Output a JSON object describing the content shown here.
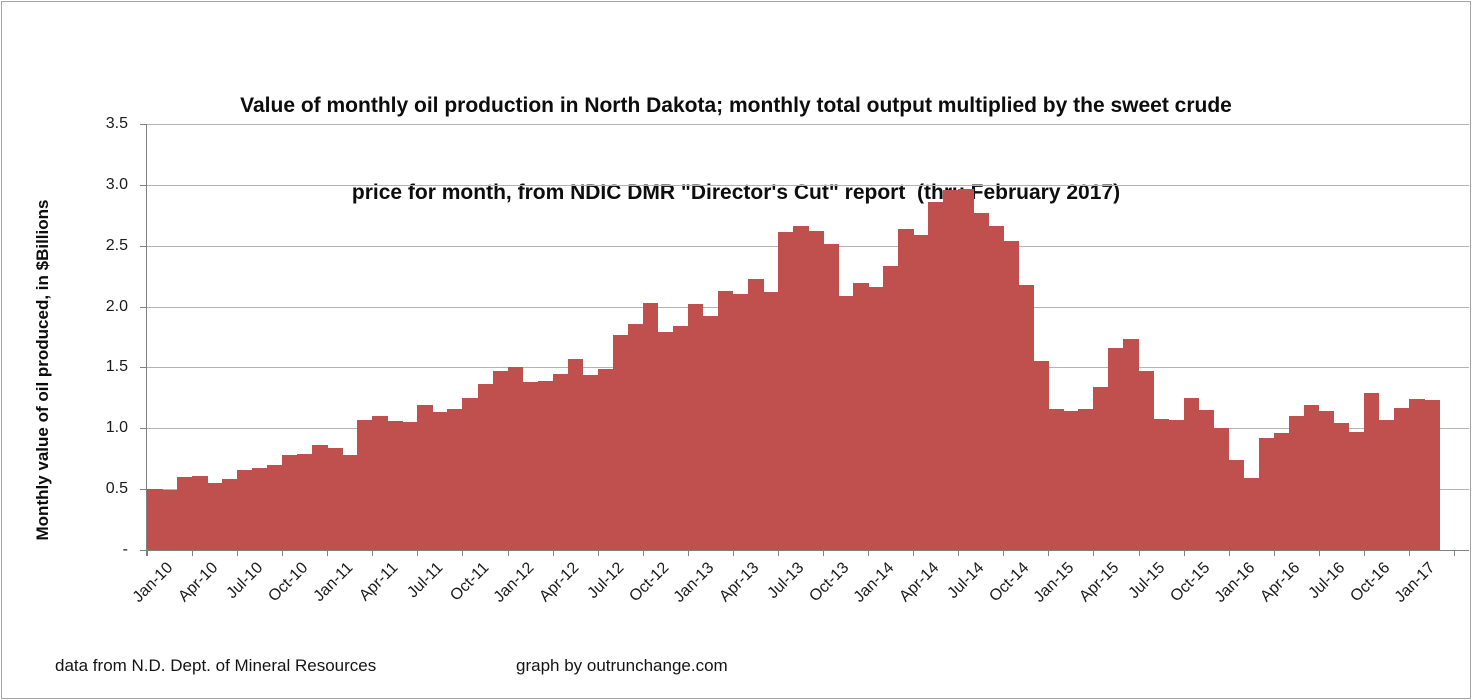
{
  "title": {
    "line1": "Value of monthly oil production in North Dakota; monthly total output multiplied by the sweet crude",
    "line2": "price for month, from NDIC DMR \"Director's Cut\" report  (thru February 2017)"
  },
  "y_axis": {
    "title": "Monthly value of oil produced, in $Billions",
    "tick_labels": [
      "3.5",
      "3.0",
      "2.5",
      "2.0",
      "1.5",
      "1.0",
      "0.5",
      "-"
    ],
    "min": 0,
    "max": 3.5,
    "step": 0.5
  },
  "x_axis": {
    "label_interval": 3,
    "first_label": "Jan-10",
    "last_label": "Jan-17"
  },
  "footer": {
    "source": "data from N.D. Dept. of Mineral Resources",
    "credit": "graph by outrunchange.com"
  },
  "colors": {
    "bar": "#C0504D",
    "gridline": "#b3b3b3",
    "axis": "#808080",
    "text": "#1a1a1a",
    "frame_border": "#a3a3a3"
  },
  "chart_data": {
    "type": "bar",
    "title": "Value of monthly oil production in North Dakota; monthly total output multiplied by the sweet crude price for month, from NDIC DMR \"Director's Cut\" report (thru February 2017)",
    "xlabel": "",
    "ylabel": "Monthly value of oil produced, in $Billions",
    "ylim": [
      0,
      3.5
    ],
    "grid": true,
    "legend": false,
    "empty_trailing_slots": 2,
    "categories": [
      "Jan-10",
      "Feb-10",
      "Mar-10",
      "Apr-10",
      "May-10",
      "Jun-10",
      "Jul-10",
      "Aug-10",
      "Sep-10",
      "Oct-10",
      "Nov-10",
      "Dec-10",
      "Jan-11",
      "Feb-11",
      "Mar-11",
      "Apr-11",
      "May-11",
      "Jun-11",
      "Jul-11",
      "Aug-11",
      "Sep-11",
      "Oct-11",
      "Nov-11",
      "Dec-11",
      "Jan-12",
      "Feb-12",
      "Mar-12",
      "Apr-12",
      "May-12",
      "Jun-12",
      "Jul-12",
      "Aug-12",
      "Sep-12",
      "Oct-12",
      "Nov-12",
      "Dec-12",
      "Jan-13",
      "Feb-13",
      "Mar-13",
      "Apr-13",
      "May-13",
      "Jun-13",
      "Jul-13",
      "Aug-13",
      "Sep-13",
      "Oct-13",
      "Nov-13",
      "Dec-13",
      "Jan-14",
      "Feb-14",
      "Mar-14",
      "Apr-14",
      "May-14",
      "Jun-14",
      "Jul-14",
      "Aug-14",
      "Sep-14",
      "Oct-14",
      "Nov-14",
      "Dec-14",
      "Jan-15",
      "Feb-15",
      "Mar-15",
      "Apr-15",
      "May-15",
      "Jun-15",
      "Jul-15",
      "Aug-15",
      "Sep-15",
      "Oct-15",
      "Nov-15",
      "Dec-15",
      "Jan-16",
      "Feb-16",
      "Mar-16",
      "Apr-16",
      "May-16",
      "Jun-16",
      "Jul-16",
      "Aug-16",
      "Sep-16",
      "Oct-16",
      "Nov-16",
      "Dec-16",
      "Jan-17",
      "Feb-17"
    ],
    "values": [
      0.5,
      0.49,
      0.6,
      0.61,
      0.55,
      0.58,
      0.66,
      0.67,
      0.7,
      0.78,
      0.79,
      0.86,
      0.84,
      0.78,
      1.07,
      1.1,
      1.06,
      1.05,
      1.19,
      1.13,
      1.16,
      1.25,
      1.36,
      1.47,
      1.5,
      1.38,
      1.39,
      1.45,
      1.57,
      1.44,
      1.49,
      1.77,
      1.86,
      2.03,
      1.79,
      1.84,
      2.02,
      1.92,
      2.13,
      2.1,
      2.23,
      2.12,
      2.61,
      2.66,
      2.62,
      2.51,
      2.09,
      2.19,
      2.16,
      2.33,
      2.64,
      2.59,
      2.86,
      2.96,
      2.97,
      2.77,
      2.66,
      2.54,
      2.18,
      1.55,
      1.16,
      1.14,
      1.16,
      1.34,
      1.66,
      1.73,
      1.47,
      1.08,
      1.07,
      1.25,
      1.15,
      1.0,
      0.74,
      0.59,
      0.92,
      0.96,
      1.1,
      1.19,
      1.14,
      1.04,
      0.97,
      1.29,
      1.07,
      1.17,
      1.24,
      1.23
    ]
  }
}
